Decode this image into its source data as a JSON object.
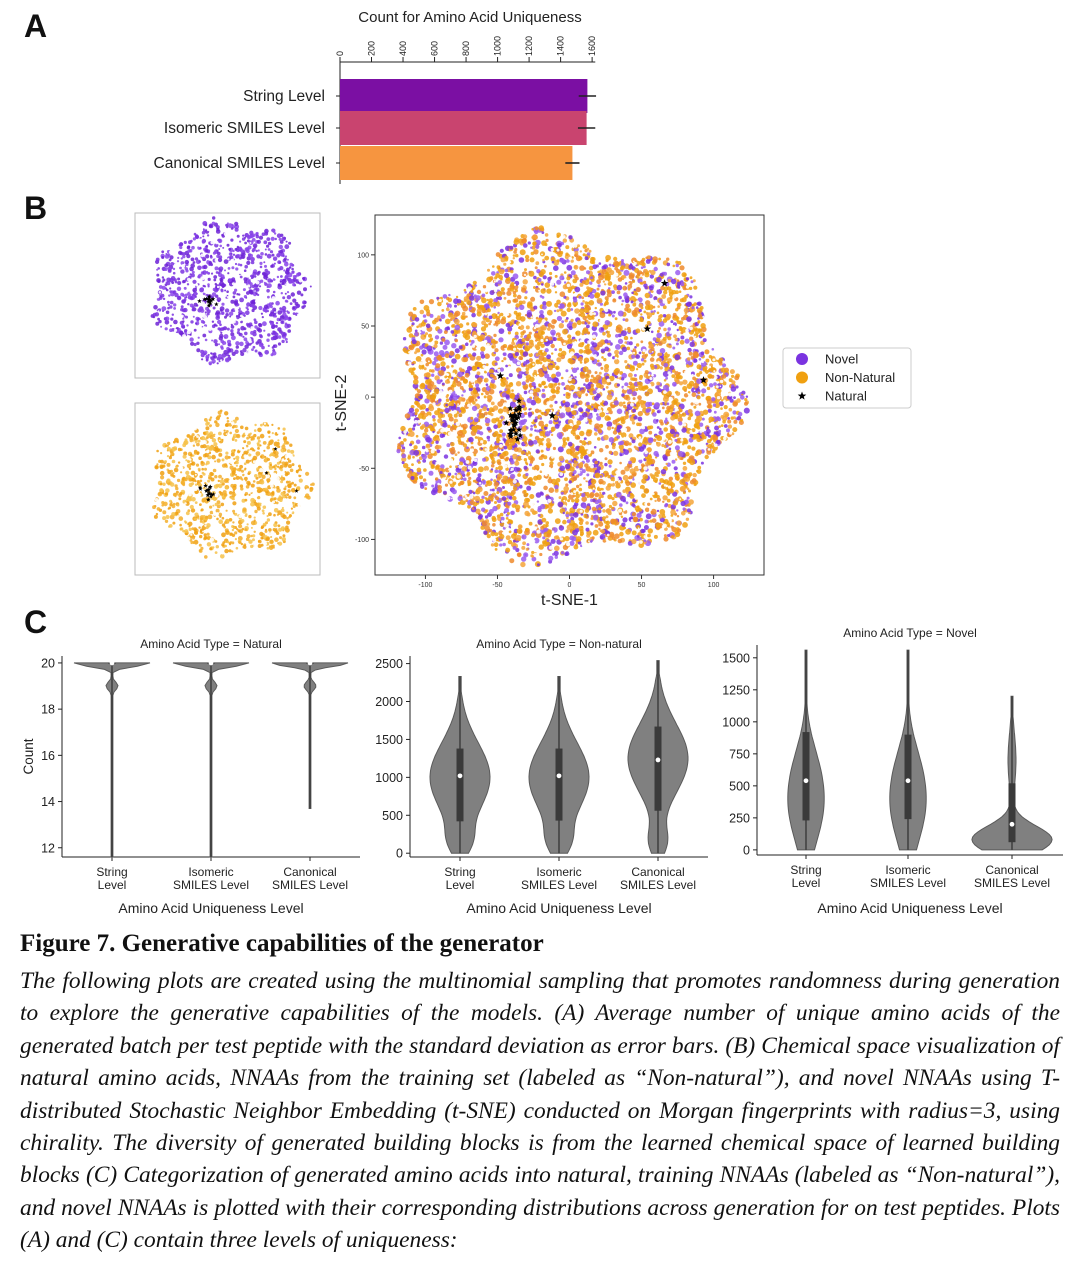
{
  "panel_labels": {
    "a": "A",
    "b": "B",
    "c": "C"
  },
  "colors": {
    "string_level": "#7b0fa3",
    "isomeric_level": "#c9446f",
    "canonical_level": "#f69540",
    "novel": "#7a33e0",
    "non_natural": "#f0a010",
    "natural": "#000000",
    "violin": "#808080"
  },
  "chart_data": [
    {
      "type": "bar",
      "orientation": "horizontal",
      "title": "Count for Amino Acid Uniqueness",
      "categories": [
        "String Level",
        "Isomeric SMILES Level",
        "Canonical SMILES Level"
      ],
      "values": [
        1570,
        1565,
        1475
      ],
      "error": [
        55,
        55,
        45
      ],
      "xlim": [
        0,
        1650
      ],
      "xticks": [
        "0",
        "200",
        "400",
        "600",
        "800",
        "1000",
        "1200",
        "1400",
        "1600"
      ],
      "tick_values": [
        0,
        200,
        400,
        600,
        800,
        1000,
        1200,
        1400,
        1600
      ]
    },
    {
      "type": "scatter",
      "xlabel": "t-SNE-1",
      "ylabel": "t-SNE-2",
      "xlim": [
        -135,
        135
      ],
      "ylim": [
        -125,
        128
      ],
      "xticks": [
        "-100",
        "-50",
        "0",
        "50",
        "100"
      ],
      "xtick_values": [
        -100,
        -50,
        0,
        50,
        100
      ],
      "yticks": [
        "100",
        "50",
        "0",
        "-50",
        "-100"
      ],
      "ytick_values": [
        100,
        50,
        0,
        -50,
        -100
      ],
      "legend": [
        "Novel",
        "Non-Natural",
        "Natural"
      ],
      "legend_position": "right",
      "natural_points": [
        [
          -48,
          15
        ],
        [
          -12,
          -13
        ],
        [
          66,
          80
        ],
        [
          54,
          48
        ],
        [
          93,
          12
        ],
        [
          -38,
          -13
        ],
        [
          -41,
          -26
        ],
        [
          -35,
          -8
        ]
      ],
      "natural_cluster": [
        -38,
        -16
      ]
    },
    {
      "type": "violin",
      "title": "Amino Acid Type = Natural",
      "xlabel": "Amino Acid Uniqueness Level",
      "ylabel": "Count",
      "categories": [
        "String\nLevel",
        "Isomeric\nSMILES Level",
        "Canonical\nSMILES Level"
      ],
      "ylim": [
        11.6,
        20.3
      ],
      "yticks": [
        "12",
        "14",
        "16",
        "18",
        "20"
      ],
      "ytick_values": [
        12,
        14,
        16,
        18,
        20
      ],
      "series": [
        {
          "min": 11.6,
          "max": 20,
          "q1": 20,
          "median": 20,
          "q3": 20,
          "mode_low": 19
        },
        {
          "min": 11.6,
          "max": 20,
          "q1": 20,
          "median": 20,
          "q3": 20,
          "mode_low": 19
        },
        {
          "min": 13.7,
          "max": 20,
          "q1": 20,
          "median": 20,
          "q3": 20,
          "mode_low": 19
        }
      ]
    },
    {
      "type": "violin",
      "title": "Amino Acid Type = Non-natural",
      "xlabel": "Amino Acid Uniqueness Level",
      "categories": [
        "String\nLevel",
        "Isomeric\nSMILES Level",
        "Canonical\nSMILES Level"
      ],
      "ylim": [
        -50,
        2600
      ],
      "yticks": [
        "0",
        "500",
        "1000",
        "1500",
        "2000",
        "2500"
      ],
      "ytick_values": [
        0,
        500,
        1000,
        1500,
        2000,
        2500
      ],
      "series": [
        {
          "min": 0,
          "max": 2330,
          "q1": 420,
          "median": 1020,
          "q3": 1380
        },
        {
          "min": 0,
          "max": 2330,
          "q1": 430,
          "median": 1020,
          "q3": 1380
        },
        {
          "min": 0,
          "max": 2540,
          "q1": 560,
          "median": 1230,
          "q3": 1670
        }
      ]
    },
    {
      "type": "violin",
      "title": "Amino Acid Type = Novel",
      "xlabel": "Amino Acid Uniqueness Level",
      "categories": [
        "String\nLevel",
        "Isomeric\nSMILES Level",
        "Canonical\nSMILES Level"
      ],
      "ylim": [
        -40,
        1600
      ],
      "yticks": [
        "0",
        "250",
        "500",
        "750",
        "1000",
        "1250",
        "1500"
      ],
      "ytick_values": [
        0,
        250,
        500,
        750,
        1000,
        1250,
        1500
      ],
      "series": [
        {
          "min": 0,
          "max": 1560,
          "q1": 230,
          "median": 540,
          "q3": 920
        },
        {
          "min": 0,
          "max": 1560,
          "q1": 240,
          "median": 540,
          "q3": 900
        },
        {
          "min": 0,
          "max": 1200,
          "q1": 60,
          "median": 200,
          "q3": 520
        }
      ]
    }
  ],
  "caption": {
    "title": "Figure 7. Generative capabilities of the generator",
    "body": "The following plots are created using the multinomial sampling that promotes randomness during generation to explore the generative capabilities of the models. (A) Average number of unique amino acids of the generated batch per test peptide with the standard deviation as error bars. (B) Chemical space visualization of natural amino acids, NNAAs from the training set (labeled as “Non-natural”), and novel NNAAs using T-distributed Stochastic Neighbor Embedding (t-SNE) conducted on Morgan fingerprints with radius=3, using chirality. The diversity of generated building blocks is from the learned chemical space of learned building blocks (C) Categorization of generated amino acids into natural, training NNAAs (labeled as “Non-natural”), and novel NNAAs is plotted with their corresponding distributions across generation for on test peptides. Plots (A) and (C) contain three levels of uniqueness:"
  }
}
